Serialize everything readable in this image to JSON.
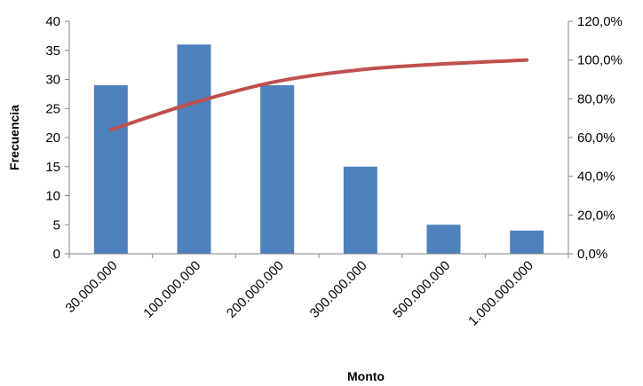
{
  "chart_data": {
    "type": "bar",
    "xlabel": "Monto",
    "ylabel": "Frecuencia",
    "categories": [
      "30.000.000",
      "100.000.000",
      "200.000.000",
      "300.000.000",
      "500.000.000",
      "1.000.000.000"
    ],
    "series": [
      {
        "kind": "bar",
        "axis": "left",
        "color": "#4F81BD",
        "values": [
          29,
          36,
          29,
          15,
          5,
          4
        ]
      },
      {
        "kind": "line",
        "axis": "right",
        "smooth": true,
        "color": "#C0504D",
        "values": [
          0.64,
          0.78,
          0.89,
          0.95,
          0.98,
          1.0
        ]
      }
    ],
    "ylim": [
      0,
      40
    ],
    "yticks": [
      "0",
      "5",
      "10",
      "15",
      "20",
      "25",
      "30",
      "35",
      "40"
    ],
    "y2lim": [
      0,
      1.2
    ],
    "y2ticks": [
      "0,0%",
      "20,0%",
      "40,0%",
      "60,0%",
      "80,0%",
      "100,0%",
      "120,0%"
    ],
    "grid": false,
    "legend": "none"
  }
}
